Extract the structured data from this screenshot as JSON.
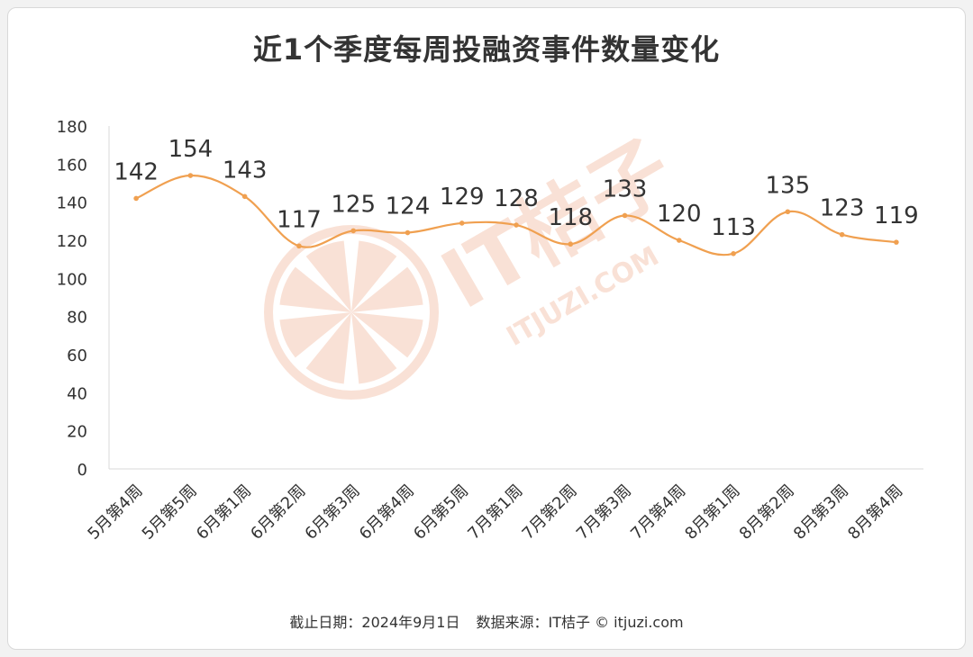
{
  "chart_data": {
    "type": "line",
    "title": "近1个季度每周投融资事件数量变化",
    "categories": [
      "5月第4周",
      "5月第5周",
      "6月第1周",
      "6月第2周",
      "6月第3周",
      "6月第4周",
      "6月第5周",
      "7月第1周",
      "7月第2周",
      "7月第3周",
      "7月第4周",
      "8月第1周",
      "8月第2周",
      "8月第3周",
      "8月第4周"
    ],
    "series": [
      {
        "values": [
          142,
          154,
          143,
          117,
          125,
          124,
          129,
          128,
          118,
          133,
          120,
          113,
          135,
          123,
          119
        ]
      }
    ],
    "ylim": [
      0,
      180
    ],
    "yticks": [
      0,
      20,
      40,
      60,
      80,
      100,
      120,
      140,
      160,
      180
    ],
    "grid": false,
    "smooth": true,
    "line_color": "#f0a050",
    "xlabel": "",
    "ylabel": ""
  },
  "watermark": {
    "text": "IT桔子",
    "url": "ITJUZI.COM"
  },
  "footer": {
    "date": "截止日期：2024年9月1日",
    "source": "数据来源：IT桔子 © itjuzi.com"
  }
}
